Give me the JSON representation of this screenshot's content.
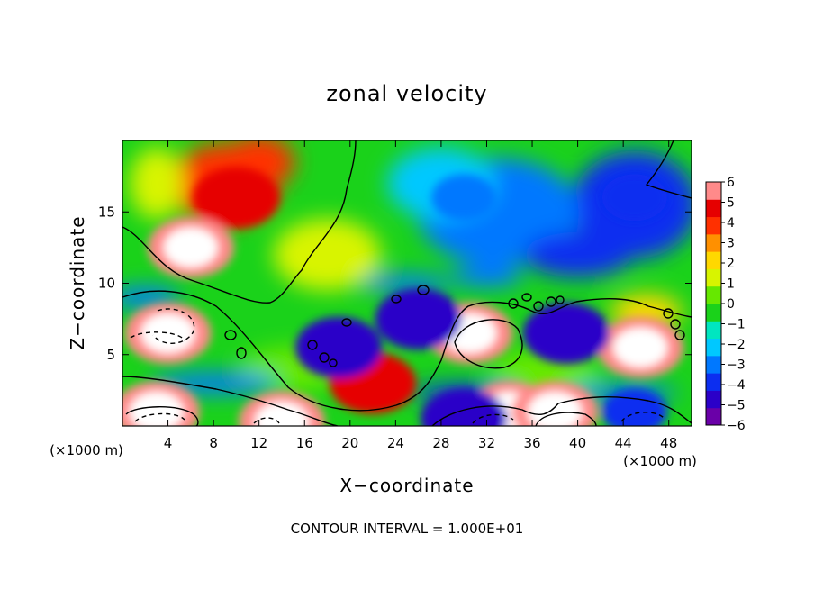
{
  "chart_data": {
    "type": "heatmap",
    "title": "zonal velocity",
    "xlabel": "X−coordinate",
    "ylabel": "Z−coordinate",
    "x_unit_note": "(×1000 m)",
    "y_unit_note": "(×1000 m)",
    "footer": "CONTOUR INTERVAL = 1.000E+01",
    "xlim": [
      0,
      50
    ],
    "ylim": [
      0,
      20
    ],
    "x_ticks": [
      4,
      8,
      12,
      16,
      20,
      24,
      28,
      32,
      36,
      40,
      44,
      48
    ],
    "y_ticks": [
      5,
      10,
      15
    ],
    "colorbar": {
      "labels": [
        "6",
        "5",
        "4",
        "3",
        "2",
        "1",
        "0",
        "−1",
        "−2",
        "−3",
        "−4",
        "−5",
        "−6"
      ],
      "range": [
        -6,
        6
      ],
      "colors": [
        "#6a00a8",
        "#2b00c8",
        "#0c2ef0",
        "#0078ff",
        "#00c8ff",
        "#00e6c0",
        "#1ad21a",
        "#66e800",
        "#d8f400",
        "#ffd800",
        "#ff9000",
        "#ff3000",
        "#e60000",
        "#ff8a8a"
      ]
    },
    "grid": false,
    "legend": "right colorbar",
    "features": [
      {
        "x": 10,
        "z": 16,
        "value": 5
      },
      {
        "x": 6,
        "z": 12.5,
        "value": 6
      },
      {
        "x": 45,
        "z": 16,
        "value": -4
      },
      {
        "x": 30,
        "z": 16,
        "value": -3
      },
      {
        "x": 4,
        "z": 6.5,
        "value": 6
      },
      {
        "x": 30.5,
        "z": 6.5,
        "value": 6
      },
      {
        "x": 45.5,
        "z": 5.5,
        "value": 6
      },
      {
        "x": 22,
        "z": 3,
        "value": 5
      },
      {
        "x": 39,
        "z": 6.5,
        "value": -5
      },
      {
        "x": 26,
        "z": 7.5,
        "value": -5
      },
      {
        "x": 19,
        "z": 5.5,
        "value": -5
      },
      {
        "x": 3,
        "z": 1,
        "value": 6
      },
      {
        "x": 14,
        "z": 0.3,
        "value": 6
      },
      {
        "x": 34,
        "z": 1,
        "value": 6
      },
      {
        "x": 30,
        "z": 0.5,
        "value": -5
      },
      {
        "x": 38,
        "z": 1,
        "value": 6
      },
      {
        "x": 45,
        "z": 1,
        "value": -4
      }
    ]
  }
}
